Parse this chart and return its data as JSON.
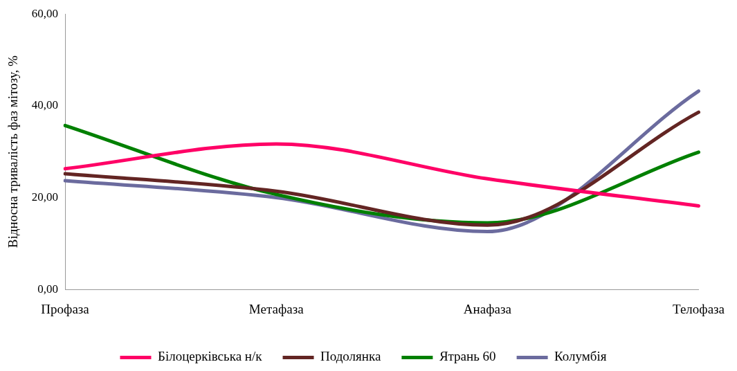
{
  "chart_data": {
    "type": "line",
    "ylabel": "Відносна тривалість фаз мітозу, %",
    "categories": [
      "Профаза",
      "Метафаза",
      "Анафаза",
      "Телофаза"
    ],
    "series": [
      {
        "name": "Білоцерківська н/к",
        "color": "#ff0066",
        "values": [
          26.3,
          31.7,
          24.1,
          18.2
        ]
      },
      {
        "name": "Подолянка",
        "color": "#632523",
        "values": [
          25.2,
          21.4,
          14.0,
          38.6
        ]
      },
      {
        "name": "Ятрань 60",
        "color": "#008000",
        "values": [
          35.7,
          20.7,
          14.5,
          29.9
        ]
      },
      {
        "name": "Колумбія",
        "color": "#6b6b9e",
        "values": [
          23.7,
          20.0,
          12.6,
          43.2
        ]
      }
    ],
    "ylim": [
      0,
      60
    ],
    "yticks": [
      {
        "value": 0,
        "label": "0,00"
      },
      {
        "value": 20,
        "label": "20,00"
      },
      {
        "value": 40,
        "label": "40,00"
      },
      {
        "value": 60,
        "label": "60,00"
      }
    ],
    "grid": false,
    "legend": "bottom",
    "marker": "none",
    "line_style": "solid"
  }
}
